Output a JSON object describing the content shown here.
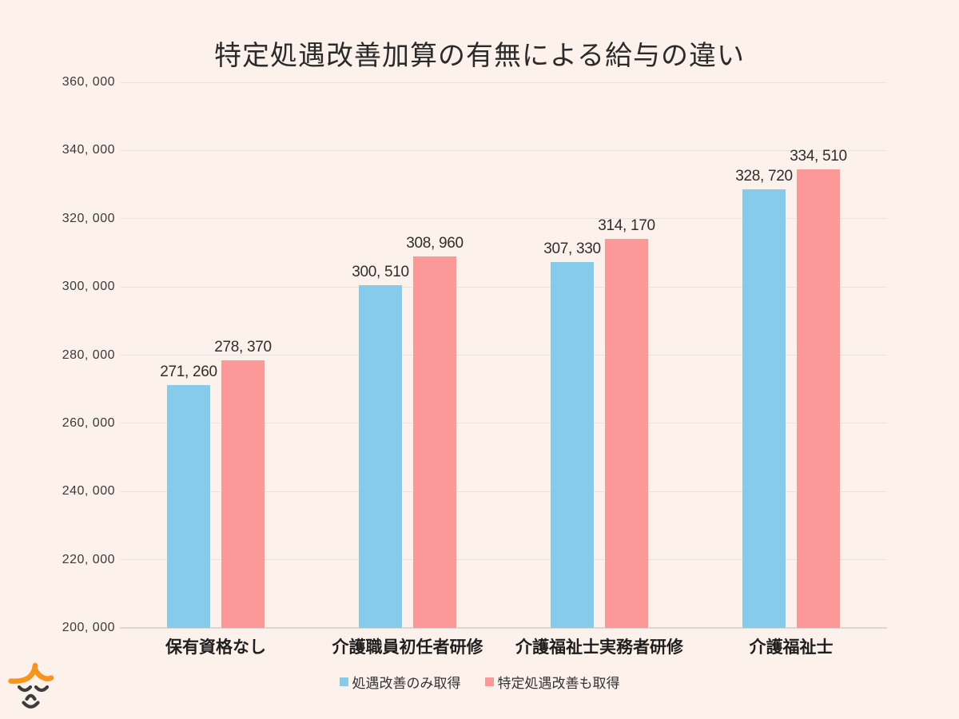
{
  "page": {
    "background": "#FDF1EC"
  },
  "chart_data": {
    "type": "bar",
    "title": "特定処遇改善加算の有無による給与の違い",
    "categories": [
      "保有資格なし",
      "介護職員初任者研修",
      "介護福祉士実務者研修",
      "介護福祉士"
    ],
    "series": [
      {
        "name": "処遇改善のみ取得",
        "color": "#87CBEA",
        "values": [
          271260,
          300510,
          307330,
          328720
        ],
        "value_labels": [
          "271, 260",
          "300, 510",
          "307, 330",
          "328, 720"
        ]
      },
      {
        "name": "特定処遇改善も取得",
        "color": "#FB9898",
        "values": [
          278370,
          308960,
          314170,
          334510
        ],
        "value_labels": [
          "278, 370",
          "308, 960",
          "314, 170",
          "334, 510"
        ]
      }
    ],
    "xlabel": "",
    "ylabel": "",
    "ylim": [
      200000,
      360000
    ],
    "ytick_step": 20000,
    "ytick_labels": [
      "200, 000",
      "220, 000",
      "240, 000",
      "260, 000",
      "280, 000",
      "300, 000",
      "320, 000",
      "340, 000",
      "360, 000"
    ],
    "grid": true,
    "legend_position": "bottom"
  },
  "colors": {
    "background": "#FDF1EC",
    "gridline": "#E9E3DF",
    "baseline": "#DCD6D2",
    "text": "#2E2E2E",
    "series_blue": "#87CBEA",
    "series_pink": "#FB9898",
    "logo_orange": "#F7941D",
    "logo_face": "#3C3C3C"
  },
  "logo": {
    "name": "smiling-face-mascot"
  }
}
